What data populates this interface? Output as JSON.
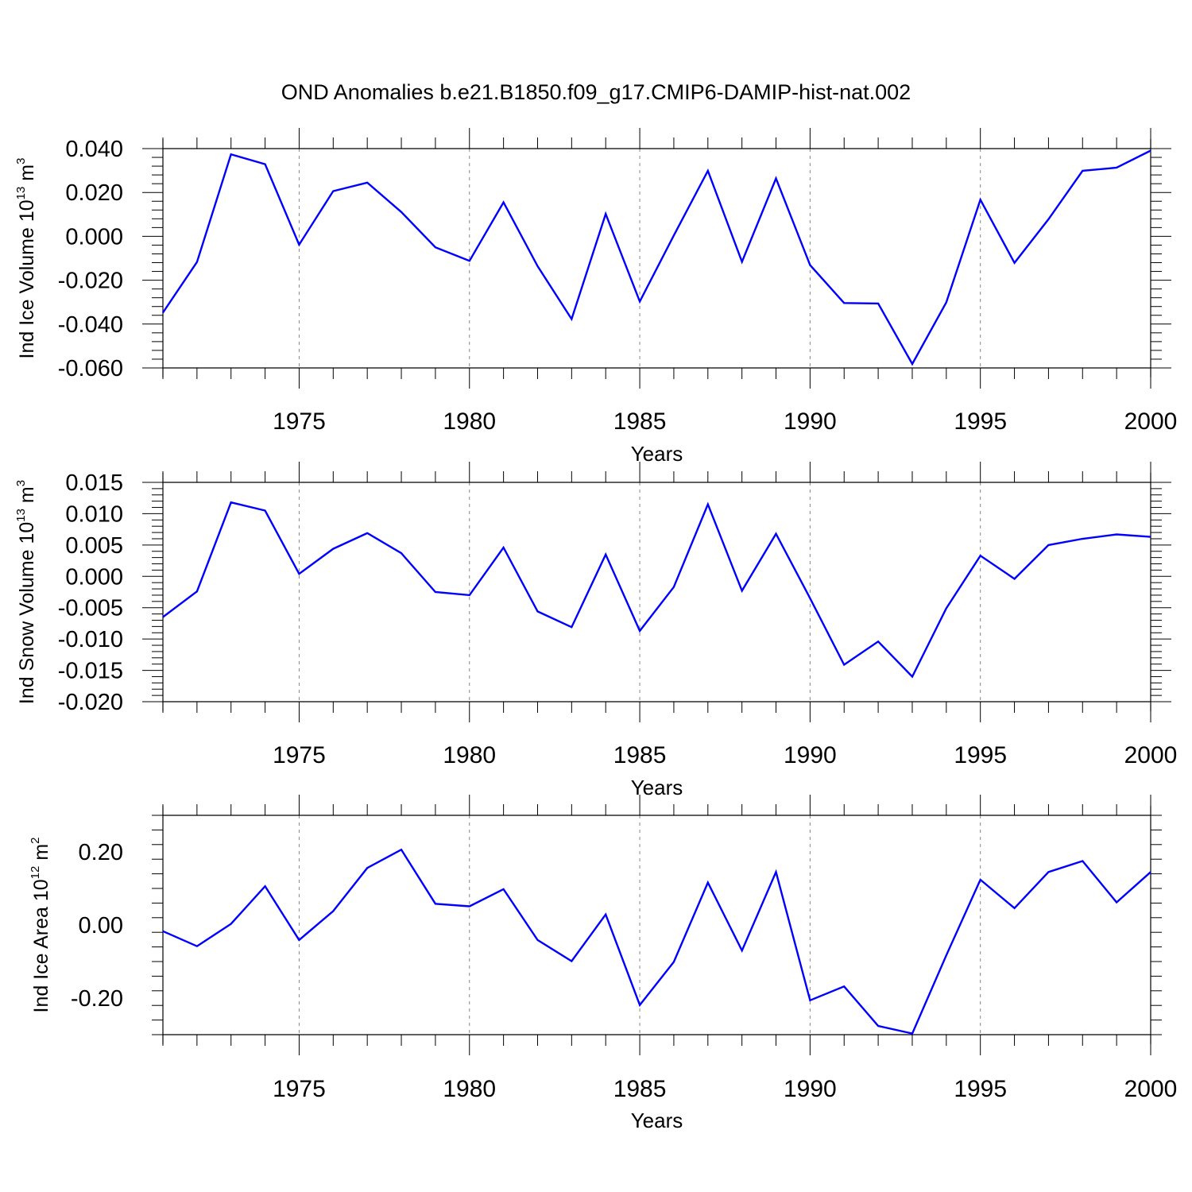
{
  "title": "OND Anomalies b.e21.B1850.f09_g17.CMIP6-DAMIP-hist-nat.002",
  "colors": {
    "line": "#0000ff",
    "axis": "#000000",
    "grid": "#888888"
  },
  "chart_data": [
    {
      "type": "line",
      "ylabel": {
        "base": "Ind Ice Volume 10",
        "exp": "13",
        "unit": " m",
        "unit_exp": "3"
      },
      "xlabel": "Years",
      "xlim": [
        1971,
        2000
      ],
      "ylim": [
        -0.06,
        0.04
      ],
      "yticks": [
        0.04,
        0.02,
        0.0,
        -0.02,
        -0.04,
        -0.06
      ],
      "ytick_labels": [
        "0.040",
        "0.020",
        "0.000",
        "-0.020",
        "-0.040",
        "-0.060"
      ],
      "xticks": [
        1975,
        1980,
        1985,
        1990,
        1995,
        2000
      ],
      "xtick_labels": [
        "1975",
        "1980",
        "1985",
        "1990",
        "1995",
        "2000"
      ],
      "x": [
        1971,
        1972,
        1973,
        1974,
        1975,
        1976,
        1977,
        1978,
        1979,
        1980,
        1981,
        1982,
        1983,
        1984,
        1985,
        1986,
        1987,
        1988,
        1989,
        1990,
        1991,
        1992,
        1993,
        1994,
        1995,
        1996,
        1997,
        1998,
        1999,
        2000
      ],
      "series": [
        {
          "name": "Ind Ice Volume",
          "values": [
            -0.0348,
            -0.0117,
            0.0374,
            0.0329,
            -0.0038,
            0.0206,
            0.0245,
            0.0111,
            -0.005,
            -0.0112,
            0.0155,
            -0.0136,
            -0.0377,
            0.0102,
            -0.0297,
            0.0004,
            0.0299,
            -0.0116,
            0.0264,
            -0.0131,
            -0.0304,
            -0.0306,
            -0.0582,
            -0.0301,
            0.0167,
            -0.0121,
            0.0078,
            0.0299,
            0.0313,
            0.0391
          ]
        }
      ]
    },
    {
      "type": "line",
      "ylabel": {
        "base": "Ind Snow Volume 10",
        "exp": "13",
        "unit": " m",
        "unit_exp": "3"
      },
      "xlabel": "Years",
      "xlim": [
        1971,
        2000
      ],
      "ylim": [
        -0.02,
        0.015
      ],
      "yticks": [
        0.015,
        0.01,
        0.005,
        0.0,
        -0.005,
        -0.01,
        -0.015,
        -0.02
      ],
      "ytick_labels": [
        "0.015",
        "0.010",
        "0.005",
        "0.000",
        "-0.005",
        "-0.010",
        "-0.015",
        "-0.020"
      ],
      "xticks": [
        1975,
        1980,
        1985,
        1990,
        1995,
        2000
      ],
      "xtick_labels": [
        "1975",
        "1980",
        "1985",
        "1990",
        "1995",
        "2000"
      ],
      "x": [
        1971,
        1972,
        1973,
        1974,
        1975,
        1976,
        1977,
        1978,
        1979,
        1980,
        1981,
        1982,
        1983,
        1984,
        1985,
        1986,
        1987,
        1988,
        1989,
        1990,
        1991,
        1992,
        1993,
        1994,
        1995,
        1996,
        1997,
        1998,
        1999,
        2000
      ],
      "series": [
        {
          "name": "Ind Snow Volume",
          "values": [
            -0.0065,
            -0.0024,
            0.0118,
            0.0105,
            0.0004,
            0.0044,
            0.0069,
            0.0037,
            -0.0025,
            -0.003,
            0.0046,
            -0.0056,
            -0.0081,
            0.0035,
            -0.0087,
            -0.0017,
            0.0115,
            -0.0023,
            0.0068,
            -0.0035,
            -0.0141,
            -0.0104,
            -0.016,
            -0.0051,
            0.0033,
            -0.0004,
            0.005,
            0.006,
            0.0067,
            0.0063
          ]
        }
      ]
    },
    {
      "type": "line",
      "ylabel": {
        "base": "Ind Ice Area 10",
        "exp": "12",
        "unit": " m",
        "unit_exp": "2"
      },
      "xlabel": "Years",
      "xlim": [
        1971,
        2000
      ],
      "ylim": [
        -0.3,
        0.3
      ],
      "yticks": [
        0.2,
        0.0,
        -0.2
      ],
      "ytick_labels": [
        "0.20",
        "0.00",
        "-0.20"
      ],
      "xticks": [
        1975,
        1980,
        1985,
        1990,
        1995,
        2000
      ],
      "xtick_labels": [
        "1975",
        "1980",
        "1985",
        "1990",
        "1995",
        "2000"
      ],
      "x": [
        1971,
        1972,
        1973,
        1974,
        1975,
        1976,
        1977,
        1978,
        1979,
        1980,
        1981,
        1982,
        1983,
        1984,
        1985,
        1986,
        1987,
        1988,
        1989,
        1990,
        1991,
        1992,
        1993,
        1994,
        1995,
        1996,
        1997,
        1998,
        1999,
        2000
      ],
      "series": [
        {
          "name": "Ind Ice Area",
          "values": [
            -0.017,
            -0.058,
            0.003,
            0.106,
            -0.041,
            0.038,
            0.156,
            0.206,
            0.058,
            0.051,
            0.098,
            -0.041,
            -0.099,
            0.029,
            -0.219,
            -0.101,
            0.116,
            -0.07,
            0.145,
            -0.206,
            -0.168,
            -0.276,
            -0.297,
            -0.083,
            0.124,
            0.046,
            0.145,
            0.175,
            0.062,
            0.145
          ]
        }
      ]
    }
  ]
}
